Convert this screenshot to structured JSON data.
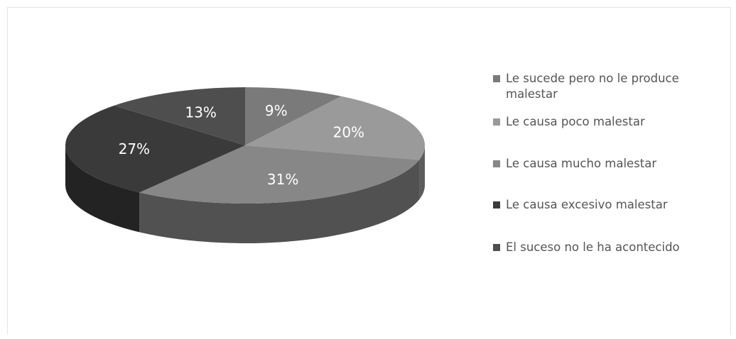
{
  "chart_data": {
    "type": "pie",
    "title": "",
    "categories": [
      "Le sucede pero no le produce malestar",
      "Le causa poco malestar",
      "Le causa mucho malestar",
      "Le causa excesivo malestar",
      "El suceso no le ha acontecido"
    ],
    "values": [
      9,
      20,
      31,
      27,
      13
    ],
    "data_labels": [
      "9%",
      "20%",
      "31%",
      "27%",
      "13%"
    ],
    "colors": [
      "#7a7a7a",
      "#9a9a9a",
      "#878787",
      "#3a3a3a",
      "#4e4e4e"
    ],
    "style": "3d",
    "legend": {
      "position": "right",
      "items": [
        "Le sucede pero no le produce malestar",
        "Le causa poco malestar",
        "Le causa mucho malestar",
        "Le causa excesivo malestar",
        "El suceso no le ha acontecido"
      ]
    }
  }
}
